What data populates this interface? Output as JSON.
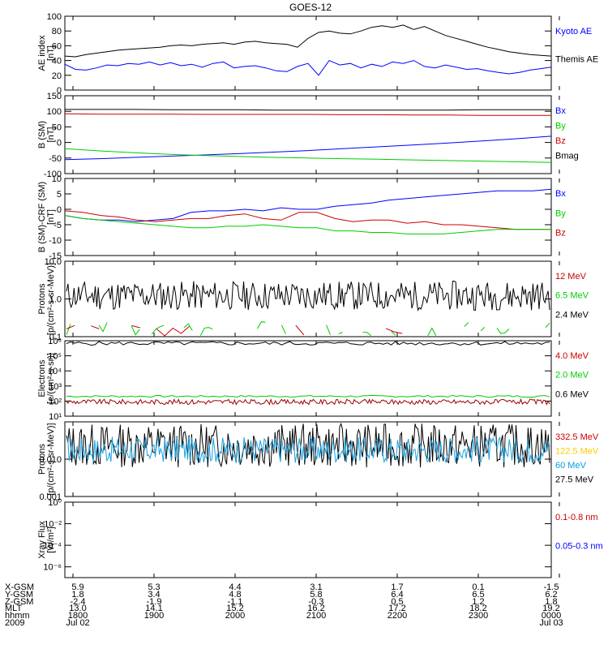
{
  "chart_data": {
    "title": "GOES-12",
    "type": "line",
    "x_ticks": [
      "1800",
      "1900",
      "2000",
      "2100",
      "2200",
      "2300",
      "0000"
    ],
    "panels": [
      {
        "id": "ae",
        "ylabel": [
          "AE index",
          "[nT]"
        ],
        "yscale": "linear",
        "ylim": [
          0,
          100
        ],
        "yticks": [
          "0",
          "20",
          "40",
          "60",
          "80",
          "100"
        ],
        "legend": [
          {
            "name": "Kyoto AE",
            "color": "#0000ff"
          },
          {
            "name": "Themis AE",
            "color": "#000000"
          }
        ],
        "series": [
          {
            "name": "Kyoto AE",
            "color": "#000000",
            "values": [
              46,
              45,
              48,
              50,
              52,
              54,
              55,
              56,
              57,
              58,
              60,
              61,
              60,
              62,
              63,
              64,
              62,
              65,
              66,
              64,
              63,
              62,
              58,
              70,
              78,
              80,
              77,
              76,
              80,
              85,
              87,
              85,
              88,
              82,
              86,
              80,
              74,
              70,
              66,
              62,
              58,
              55,
              52,
              50,
              48,
              47,
              46
            ]
          },
          {
            "name": "Themis AE",
            "color": "#0000ff",
            "values": [
              35,
              28,
              27,
              30,
              34,
              33,
              36,
              35,
              38,
              34,
              37,
              33,
              35,
              31,
              36,
              38,
              30,
              32,
              33,
              30,
              26,
              25,
              32,
              36,
              20,
              40,
              34,
              36,
              30,
              35,
              32,
              38,
              36,
              40,
              32,
              30,
              34,
              31,
              28,
              29,
              26,
              24,
              22,
              24,
              27,
              29,
              31
            ]
          }
        ]
      },
      {
        "id": "bsm",
        "ylabel": [
          "B (SM)",
          "[nT]"
        ],
        "yscale": "linear",
        "ylim": [
          -100,
          150
        ],
        "yticks": [
          "-100",
          "-50",
          "0",
          "50",
          "100",
          "150"
        ],
        "legend": [
          {
            "name": "Bx",
            "color": "#0000ff"
          },
          {
            "name": "By",
            "color": "#00cc00"
          },
          {
            "name": "Bz",
            "color": "#cc0000"
          },
          {
            "name": "Bmag",
            "color": "#000000"
          }
        ],
        "series": [
          {
            "name": "Bmag",
            "color": "#000000",
            "values": [
              106,
              106,
              106,
              105,
              105,
              105,
              104,
              104,
              104,
              104,
              104,
              104,
              105,
              105,
              105
            ]
          },
          {
            "name": "Bz",
            "color": "#cc0000",
            "values": [
              92,
              91,
              91,
              91,
              90,
              90,
              90,
              90,
              89,
              89,
              88,
              88,
              87,
              87,
              87
            ]
          },
          {
            "name": "Bx",
            "color": "#0000ff",
            "values": [
              -55,
              -52,
              -48,
              -44,
              -40,
              -36,
              -31,
              -26,
              -20,
              -14,
              -8,
              -2,
              5,
              12,
              20
            ]
          },
          {
            "name": "By",
            "color": "#00cc00",
            "values": [
              -20,
              -27,
              -33,
              -38,
              -42,
              -45,
              -48,
              -50,
              -52,
              -54,
              -56,
              -58,
              -60,
              -62,
              -64
            ]
          }
        ]
      },
      {
        "id": "bdiff",
        "ylabel": [
          "B (SM)-CRF (SM)",
          "[nT]"
        ],
        "yscale": "linear",
        "ylim": [
          -15,
          10
        ],
        "yticks": [
          "-15",
          "-10",
          "-5",
          "0",
          "5",
          "10"
        ],
        "legend": [
          {
            "name": "Bx",
            "color": "#0000ff"
          },
          {
            "name": "By",
            "color": "#00cc00"
          },
          {
            "name": "Bz",
            "color": "#cc0000"
          }
        ],
        "series": [
          {
            "name": "Bx",
            "color": "#0000ff",
            "values": [
              -2,
              -3,
              -3.5,
              -3.5,
              -4,
              -3.5,
              -3,
              -1,
              -0.5,
              -0.5,
              0,
              -0.5,
              0.5,
              0,
              0,
              1,
              1.5,
              2,
              3,
              3.5,
              4,
              4.5,
              5,
              5.5,
              6,
              6,
              6,
              6.5
            ]
          },
          {
            "name": "Bz",
            "color": "#cc0000",
            "values": [
              -0.5,
              -1,
              -2,
              -2.5,
              -3.5,
              -4,
              -3.5,
              -3,
              -3,
              -2,
              -1.5,
              -3,
              -3.5,
              -1,
              -1,
              -3,
              -4,
              -3.5,
              -3.5,
              -4.5,
              -4,
              -5,
              -5,
              -5.5,
              -6,
              -6.5,
              -6.5,
              -6.5
            ]
          },
          {
            "name": "By",
            "color": "#00cc00",
            "values": [
              -2,
              -3,
              -3.5,
              -4,
              -4.5,
              -5,
              -5.5,
              -6,
              -6,
              -5.5,
              -5.5,
              -5,
              -5.5,
              -6,
              -6,
              -7,
              -7,
              -7.5,
              -7.5,
              -8,
              -8,
              -8,
              -7.5,
              -7,
              -6.5,
              -6.5,
              -6.5,
              -6.5
            ]
          }
        ]
      },
      {
        "id": "protons-low",
        "ylabel": [
          "Protons",
          "[p/(cm²-s-sr-MeV)]"
        ],
        "yscale": "log",
        "ylim": [
          0.1,
          10
        ],
        "yticks": [
          "0.1",
          "1.0",
          "10.0"
        ],
        "legend": [
          {
            "name": "12 MeV",
            "color": "#cc0000"
          },
          {
            "name": "6.5 MeV",
            "color": "#00cc00"
          },
          {
            "name": "2.4 MeV",
            "color": "#000000"
          }
        ],
        "series": [
          {
            "name": "2.4 MeV",
            "color": "#000000",
            "noise": [
              0.5,
              3.0
            ],
            "seed": 11,
            "points": 320
          },
          {
            "name": "6.5 MeV",
            "color": "#00cc00",
            "noise": [
              0.1,
              0.25
            ],
            "seed": 23,
            "points": 120,
            "sparse": true
          },
          {
            "name": "12 MeV",
            "color": "#cc0000",
            "noise": [
              0.1,
              0.2
            ],
            "seed": 37,
            "points": 60,
            "sparse": true
          }
        ]
      },
      {
        "id": "electrons",
        "ylabel": [
          "Electrons",
          "[e/(cm²-s-sr)]"
        ],
        "yscale": "log",
        "ylim": [
          10,
          1000000
        ],
        "yticks": [
          "10¹",
          "10²",
          "10³",
          "10⁴",
          "10⁵",
          "10⁶"
        ],
        "legend": [
          {
            "name": "4.0 MeV",
            "color": "#cc0000"
          },
          {
            "name": "2.0 MeV",
            "color": "#00cc00"
          },
          {
            "name": "0.6 MeV",
            "color": "#000000"
          }
        ],
        "series": [
          {
            "name": "0.6 MeV",
            "color": "#000000",
            "noise": [
              500000,
              900000
            ],
            "seed": 5,
            "points": 120
          },
          {
            "name": "2.0 MeV",
            "color": "#00cc00",
            "noise": [
              180,
              240
            ],
            "seed": 7,
            "points": 120
          },
          {
            "name": "4.0 MeV",
            "color": "#990000",
            "noise": [
              60,
              130
            ],
            "seed": 9,
            "points": 320
          }
        ]
      },
      {
        "id": "protons-high",
        "ylabel": [
          "Protons",
          "[p/(cm²-s-sr-MeV)]"
        ],
        "yscale": "log",
        "ylim": [
          0.001,
          0.1
        ],
        "yticks": [
          "0.001",
          "0.010"
        ],
        "legend": [
          {
            "name": "332.5 MeV",
            "color": "#cc0000"
          },
          {
            "name": "122.5 MeV",
            "color": "#ffcc00"
          },
          {
            "name": "60 MeV",
            "color": "#00a0e0"
          },
          {
            "name": "27.5 MeV",
            "color": "#000000"
          }
        ],
        "series": [
          {
            "name": "27.5 MeV",
            "color": "#000000",
            "noise": [
              0.006,
              0.09
            ],
            "seed": 13,
            "points": 360
          },
          {
            "name": "60 MeV",
            "color": "#1ea0dc",
            "noise": [
              0.008,
              0.04
            ],
            "seed": 17,
            "points": 360
          }
        ]
      },
      {
        "id": "xray",
        "ylabel": [
          "Xray  Flux",
          "[W/m²]"
        ],
        "yscale": "log",
        "ylim": [
          1e-07,
          1
        ],
        "yticks": [
          "10⁻⁶",
          "10⁻⁴",
          "10⁻²",
          "10⁰"
        ],
        "legend": [
          {
            "name": "0.1-0.8 nm",
            "color": "#cc0000"
          },
          {
            "name": "0.05-0.3 nm",
            "color": "#0000ff"
          }
        ],
        "series": []
      }
    ],
    "ephemeris": {
      "rows": [
        {
          "label": "X-GSM",
          "values": [
            "5.9",
            "5.3",
            "4.4",
            "3.1",
            "1.7",
            "0.1",
            "-1.5"
          ]
        },
        {
          "label": "Y-GSM",
          "values": [
            "1.8",
            "3.4",
            "4.8",
            "5.8",
            "6.4",
            "6.5",
            "6.2"
          ]
        },
        {
          "label": "Z-GSM",
          "values": [
            "-2.4",
            "-1.9",
            "-1.1",
            "-0.3",
            "0.5",
            "1.2",
            "1.8"
          ]
        },
        {
          "label": "MLT",
          "values": [
            "13.0",
            "14.1",
            "15.2",
            "16.2",
            "17.2",
            "18.2",
            "19.2"
          ]
        },
        {
          "label": "hhmm",
          "values": [
            "1800",
            "1900",
            "2000",
            "2100",
            "2200",
            "2300",
            "0000"
          ]
        },
        {
          "label": "2009",
          "values": [
            "Jul 02",
            "",
            "",
            "",
            "",
            "",
            "Jul 03"
          ]
        }
      ]
    }
  }
}
